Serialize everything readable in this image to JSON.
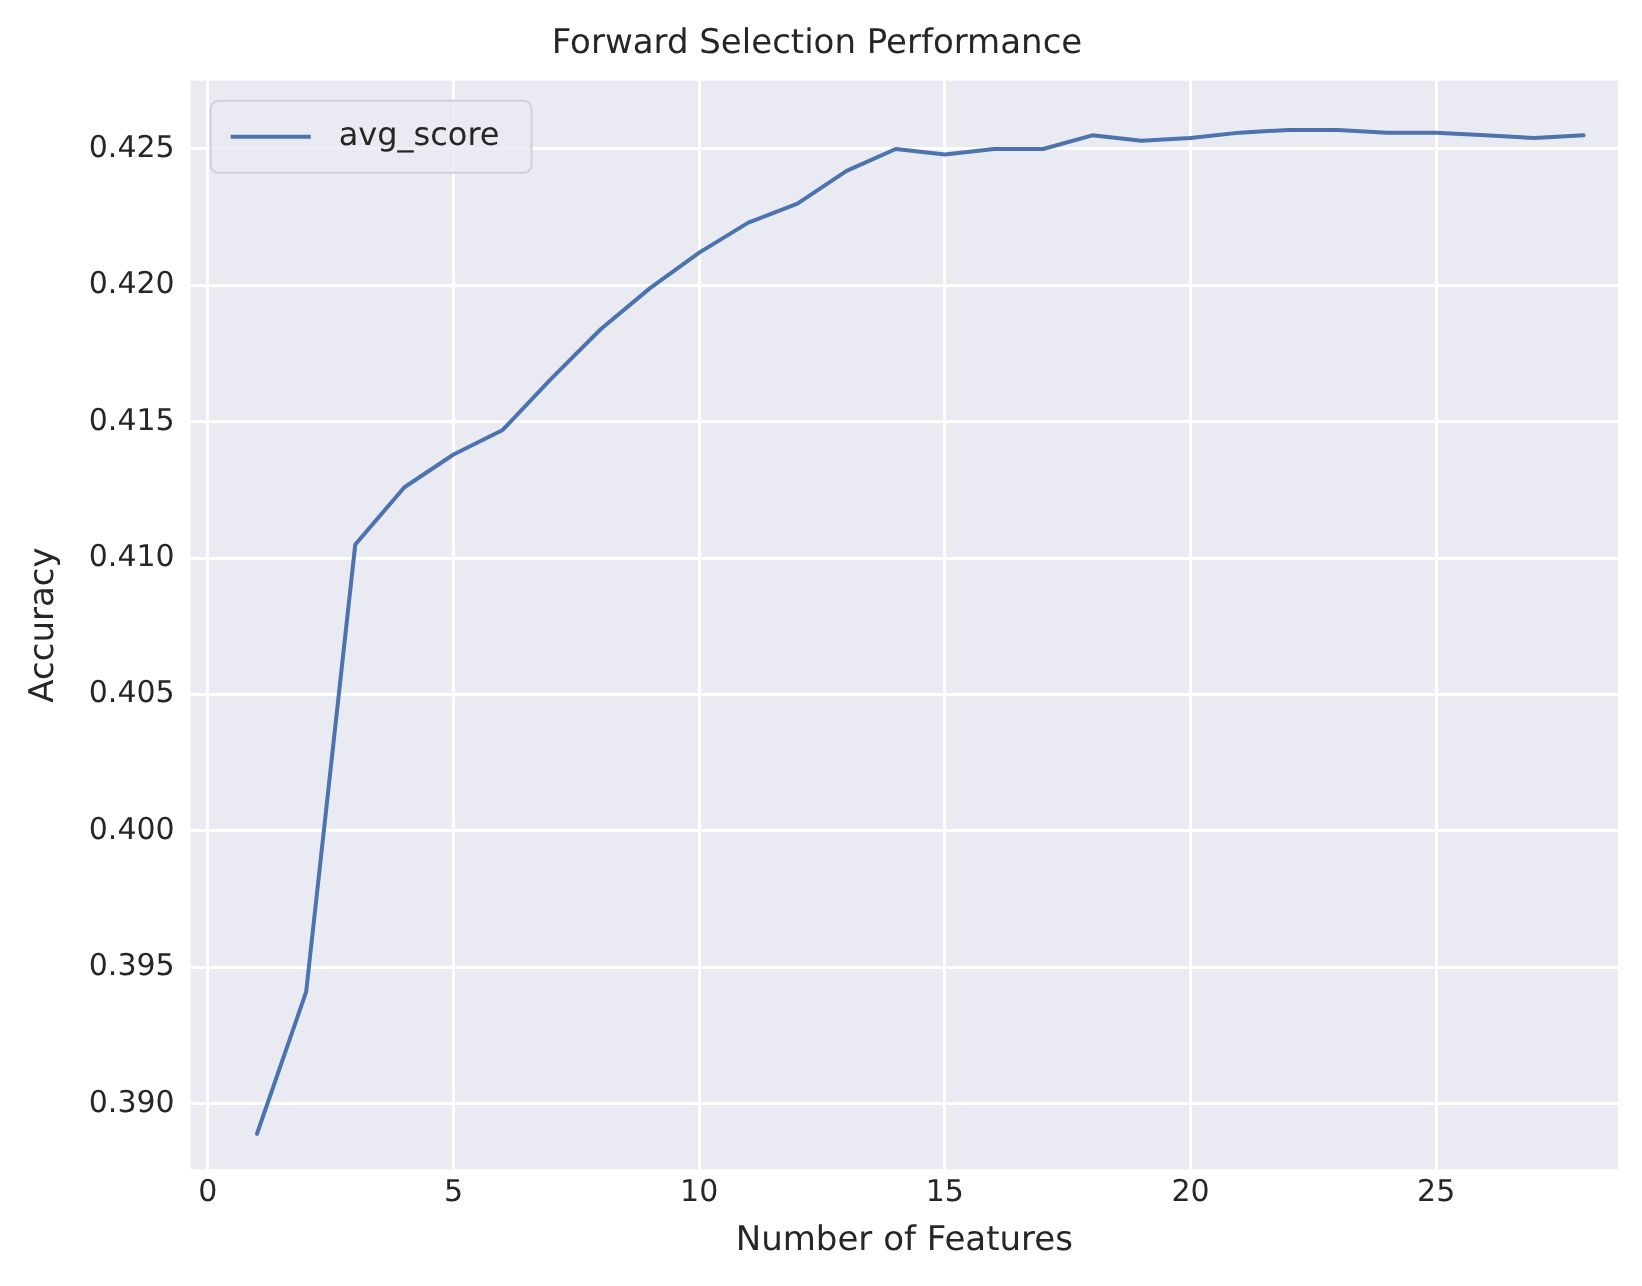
{
  "chart_data": {
    "type": "line",
    "title": "Forward Selection Performance",
    "xlabel": "Number of Features",
    "ylabel": "Accuracy",
    "x": [
      1,
      2,
      3,
      4,
      5,
      6,
      7,
      8,
      9,
      10,
      11,
      12,
      13,
      14,
      15,
      16,
      17,
      18,
      19,
      20,
      21,
      22,
      23,
      24,
      25,
      26,
      27,
      28
    ],
    "series": [
      {
        "name": "avg_score",
        "color": "#4c72b0",
        "values": [
          0.3889,
          0.3941,
          0.4105,
          0.4126,
          0.4138,
          0.4147,
          0.4166,
          0.4184,
          0.4199,
          0.4212,
          0.4223,
          0.423,
          0.4242,
          0.425,
          0.4248,
          0.425,
          0.425,
          0.4255,
          0.4253,
          0.4254,
          0.4256,
          0.4257,
          0.4257,
          0.4256,
          0.4256,
          0.4255,
          0.4254,
          0.4255
        ]
      }
    ],
    "xlim": [
      -0.35,
      28.7
    ],
    "xticks": [
      0,
      5,
      10,
      15,
      20,
      25
    ],
    "ylim": [
      0.3876,
      0.4275
    ],
    "yticks": [
      {
        "value": 0.39,
        "label": "0.390"
      },
      {
        "value": 0.395,
        "label": "0.395"
      },
      {
        "value": 0.4,
        "label": "0.400"
      },
      {
        "value": 0.405,
        "label": "0.405"
      },
      {
        "value": 0.41,
        "label": "0.410"
      },
      {
        "value": 0.415,
        "label": "0.415"
      },
      {
        "value": 0.42,
        "label": "0.420"
      },
      {
        "value": 0.425,
        "label": "0.425"
      }
    ],
    "grid": true,
    "legend": "top left",
    "marker": "none",
    "line_style": "solid"
  }
}
